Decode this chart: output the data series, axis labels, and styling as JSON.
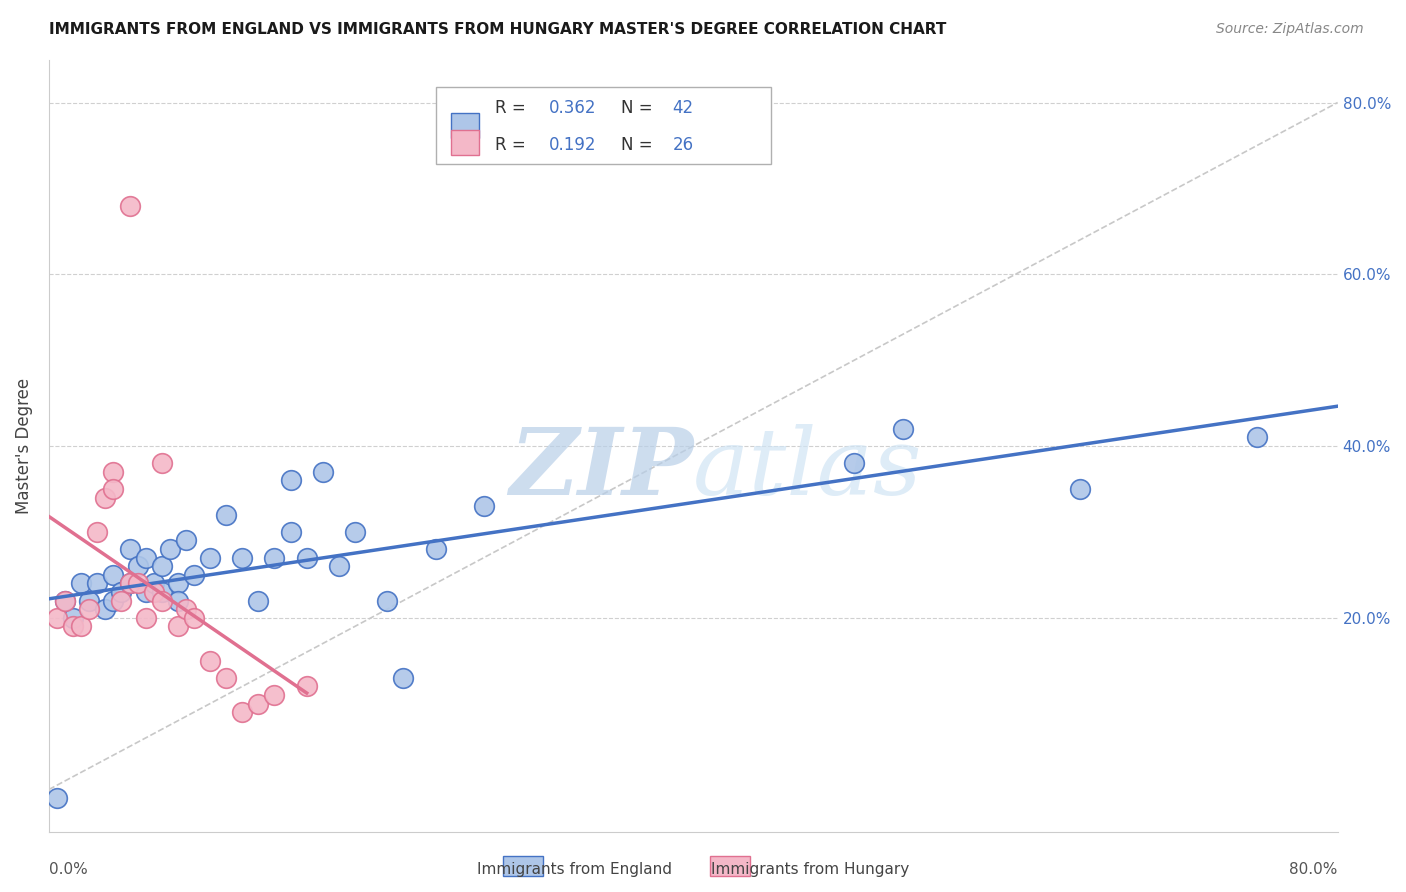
{
  "title": "IMMIGRANTS FROM ENGLAND VS IMMIGRANTS FROM HUNGARY MASTER'S DEGREE CORRELATION CHART",
  "source": "Source: ZipAtlas.com",
  "ylabel_label": "Master's Degree",
  "right_ytick_vals": [
    0.8,
    0.6,
    0.4,
    0.2
  ],
  "xmin": 0.0,
  "xmax": 0.8,
  "ymin": -0.05,
  "ymax": 0.85,
  "legend_england_r": "0.362",
  "legend_england_n": "42",
  "legend_hungary_r": "0.192",
  "legend_hungary_n": "26",
  "england_color": "#aec6e8",
  "hungary_color": "#f4b8c8",
  "england_line_color": "#4472c4",
  "hungary_line_color": "#e07090",
  "diagonal_color": "#c8c8c8",
  "england_scatter_x": [
    0.005,
    0.01,
    0.015,
    0.02,
    0.025,
    0.03,
    0.035,
    0.04,
    0.04,
    0.045,
    0.05,
    0.05,
    0.055,
    0.06,
    0.06,
    0.065,
    0.07,
    0.07,
    0.075,
    0.08,
    0.08,
    0.085,
    0.09,
    0.1,
    0.11,
    0.12,
    0.13,
    0.14,
    0.15,
    0.16,
    0.17,
    0.19,
    0.21,
    0.22,
    0.24,
    0.27,
    0.5,
    0.53,
    0.64,
    0.75,
    0.15,
    0.18
  ],
  "england_scatter_y": [
    -0.01,
    0.22,
    0.2,
    0.24,
    0.22,
    0.24,
    0.21,
    0.25,
    0.22,
    0.23,
    0.28,
    0.24,
    0.26,
    0.23,
    0.27,
    0.24,
    0.26,
    0.23,
    0.28,
    0.24,
    0.22,
    0.29,
    0.25,
    0.27,
    0.32,
    0.27,
    0.22,
    0.27,
    0.3,
    0.27,
    0.37,
    0.3,
    0.22,
    0.13,
    0.28,
    0.33,
    0.38,
    0.42,
    0.35,
    0.41,
    0.36,
    0.26
  ],
  "hungary_scatter_x": [
    0.005,
    0.01,
    0.015,
    0.02,
    0.025,
    0.03,
    0.035,
    0.04,
    0.04,
    0.045,
    0.05,
    0.055,
    0.06,
    0.065,
    0.07,
    0.08,
    0.085,
    0.09,
    0.1,
    0.11,
    0.12,
    0.13,
    0.14,
    0.16,
    0.05,
    0.07
  ],
  "hungary_scatter_y": [
    0.2,
    0.22,
    0.19,
    0.19,
    0.21,
    0.3,
    0.34,
    0.37,
    0.35,
    0.22,
    0.24,
    0.24,
    0.2,
    0.23,
    0.22,
    0.19,
    0.21,
    0.2,
    0.15,
    0.13,
    0.09,
    0.1,
    0.11,
    0.12,
    0.68,
    0.38
  ],
  "watermark_zip": "ZIP",
  "watermark_atlas": "atlas",
  "background_color": "#ffffff",
  "grid_color": "#d0d0d0"
}
